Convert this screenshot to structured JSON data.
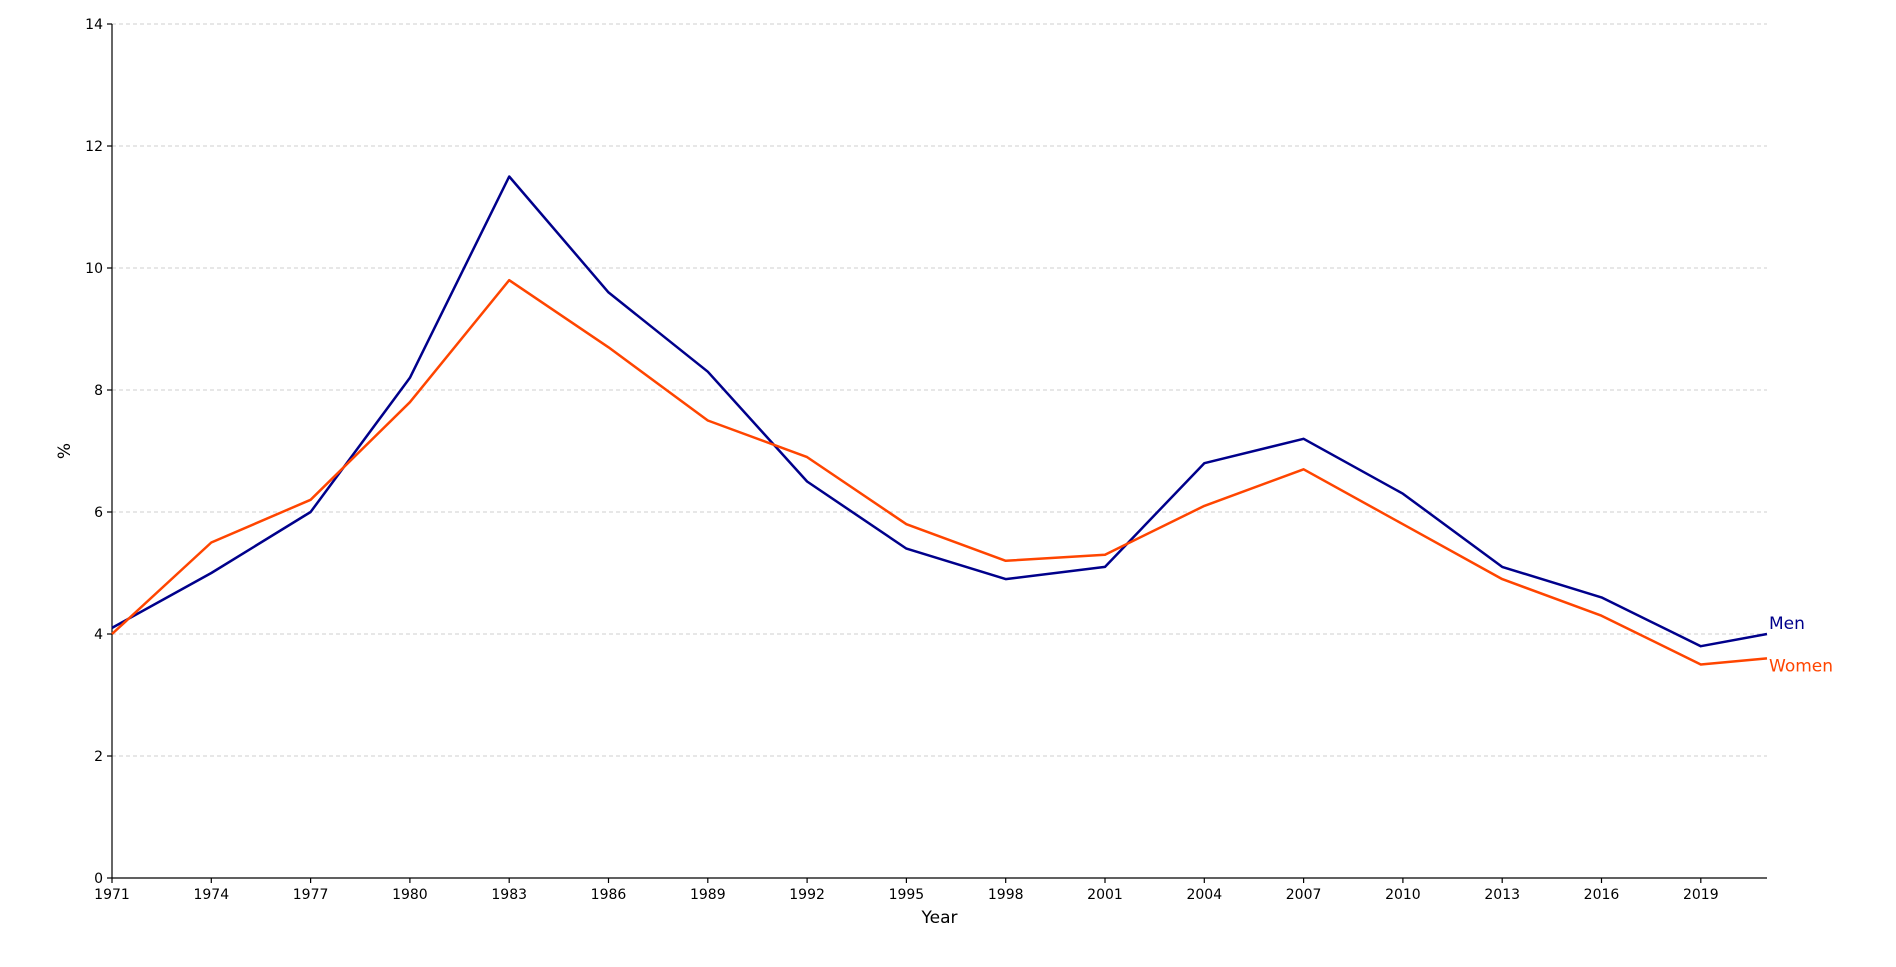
{
  "chart_data": {
    "type": "line",
    "xlabel": "Year",
    "ylabel": "%",
    "xlim": [
      1971,
      2021
    ],
    "ylim": [
      0,
      14
    ],
    "y_ticks": [
      0,
      2,
      4,
      6,
      8,
      10,
      12,
      14
    ],
    "x_ticks": [
      1971,
      1974,
      1977,
      1980,
      1983,
      1986,
      1989,
      1992,
      1995,
      1998,
      2001,
      2004,
      2007,
      2010,
      2013,
      2016,
      2019
    ],
    "grid": "horizontal dashed",
    "x": [
      1971,
      1974,
      1977,
      1980,
      1983,
      1986,
      1989,
      1992,
      1995,
      1998,
      2001,
      2004,
      2007,
      2010,
      2013,
      2016,
      2019,
      2021
    ],
    "series": [
      {
        "name": "Men",
        "color": "#00008b",
        "values": [
          4.1,
          5.0,
          6.0,
          8.2,
          11.5,
          9.6,
          8.3,
          6.5,
          5.4,
          4.9,
          5.1,
          6.8,
          7.2,
          6.3,
          5.1,
          4.6,
          3.8,
          4.0
        ]
      },
      {
        "name": "Women",
        "color": "#ff4500",
        "values": [
          4.0,
          5.5,
          6.2,
          7.8,
          9.8,
          8.7,
          7.5,
          6.9,
          5.8,
          5.2,
          5.3,
          6.1,
          6.7,
          5.8,
          4.9,
          4.3,
          3.5,
          3.6
        ]
      }
    ],
    "legend_placement": "inline labels at line ends (right)"
  }
}
